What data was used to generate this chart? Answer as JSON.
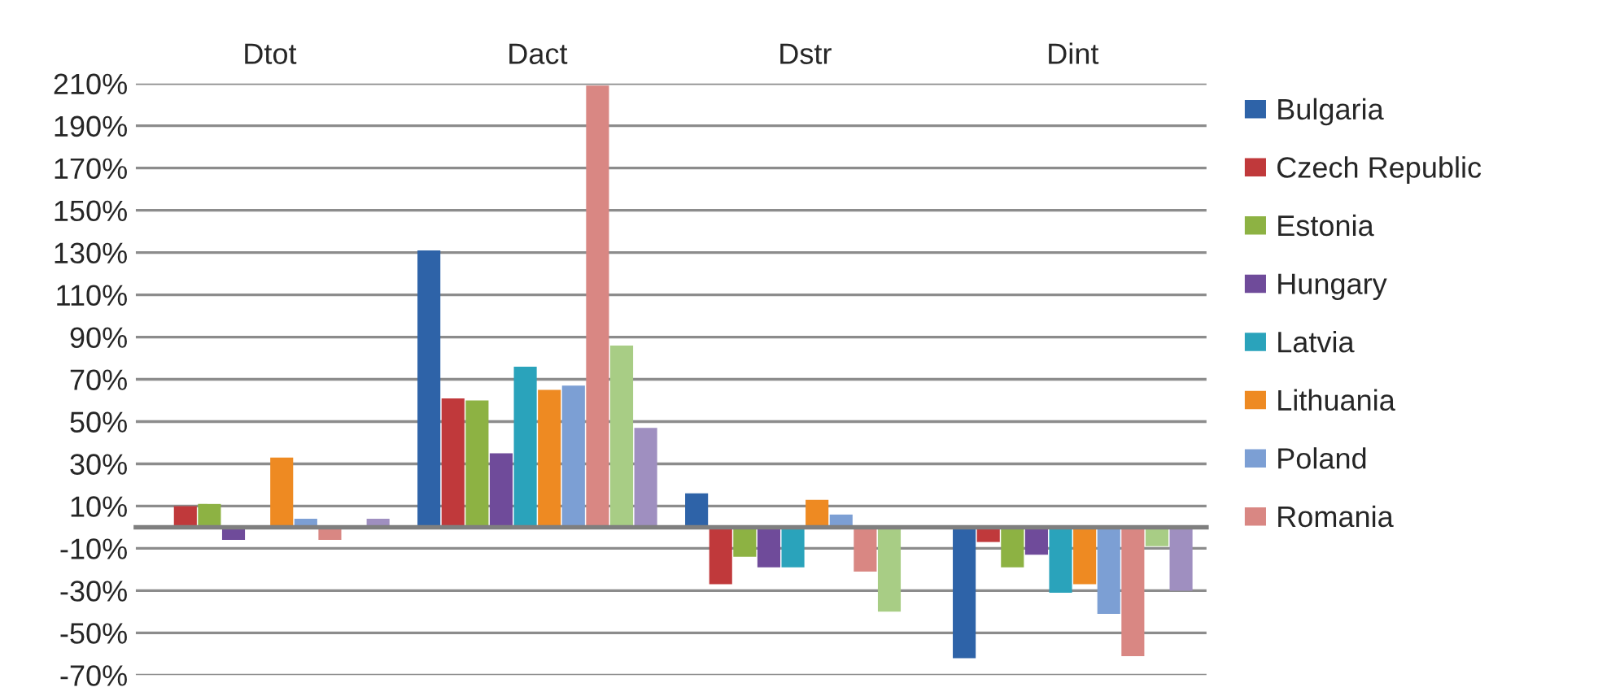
{
  "chart_data": {
    "type": "bar",
    "categories": [
      "Dtot",
      "Dact",
      "Dstr",
      "Dint"
    ],
    "series": [
      {
        "name": "Bulgaria",
        "color": "#2e63a8",
        "values": [
          0,
          131,
          16,
          -62
        ]
      },
      {
        "name": "Czech Republic",
        "color": "#c0393b",
        "values": [
          10,
          61,
          -27,
          -7
        ]
      },
      {
        "name": "Estonia",
        "color": "#8db243",
        "values": [
          11,
          60,
          -14,
          -19
        ]
      },
      {
        "name": "Hungary",
        "color": "#6f4b9a",
        "values": [
          -6,
          35,
          -19,
          -13
        ]
      },
      {
        "name": "Latvia",
        "color": "#2aa3bb",
        "values": [
          -1,
          76,
          -19,
          -31
        ]
      },
      {
        "name": "Lithuania",
        "color": "#ee8a22",
        "values": [
          33,
          65,
          13,
          -27
        ]
      },
      {
        "name": "Poland",
        "color": "#7c9fd4",
        "values": [
          4,
          67,
          6,
          -41
        ]
      },
      {
        "name": "Romania",
        "color": "#d98783",
        "values": [
          -6,
          209,
          -21,
          -61
        ]
      },
      {
        "color": "#a8cd85",
        "values": [
          null,
          86,
          -40,
          -9
        ]
      },
      {
        "color": "#9f8fc0",
        "values": [
          4,
          47,
          0,
          -30
        ]
      }
    ],
    "ylim": [
      -70,
      210
    ],
    "yticks": [
      {
        "value": -70,
        "label": "-70%"
      },
      {
        "value": -50,
        "label": "-50%"
      },
      {
        "value": -30,
        "label": "-30%"
      },
      {
        "value": -10,
        "label": "-10%"
      },
      {
        "value": 10,
        "label": "10%"
      },
      {
        "value": 30,
        "label": "30%"
      },
      {
        "value": 50,
        "label": "50%"
      },
      {
        "value": 70,
        "label": "70%"
      },
      {
        "value": 90,
        "label": "90%"
      },
      {
        "value": 110,
        "label": "110%"
      },
      {
        "value": 130,
        "label": "130%"
      },
      {
        "value": 150,
        "label": "150%"
      },
      {
        "value": 170,
        "label": "170%"
      },
      {
        "value": 190,
        "label": "190%"
      },
      {
        "value": 210,
        "label": "210%"
      }
    ],
    "grid": "y",
    "legend": "right"
  }
}
